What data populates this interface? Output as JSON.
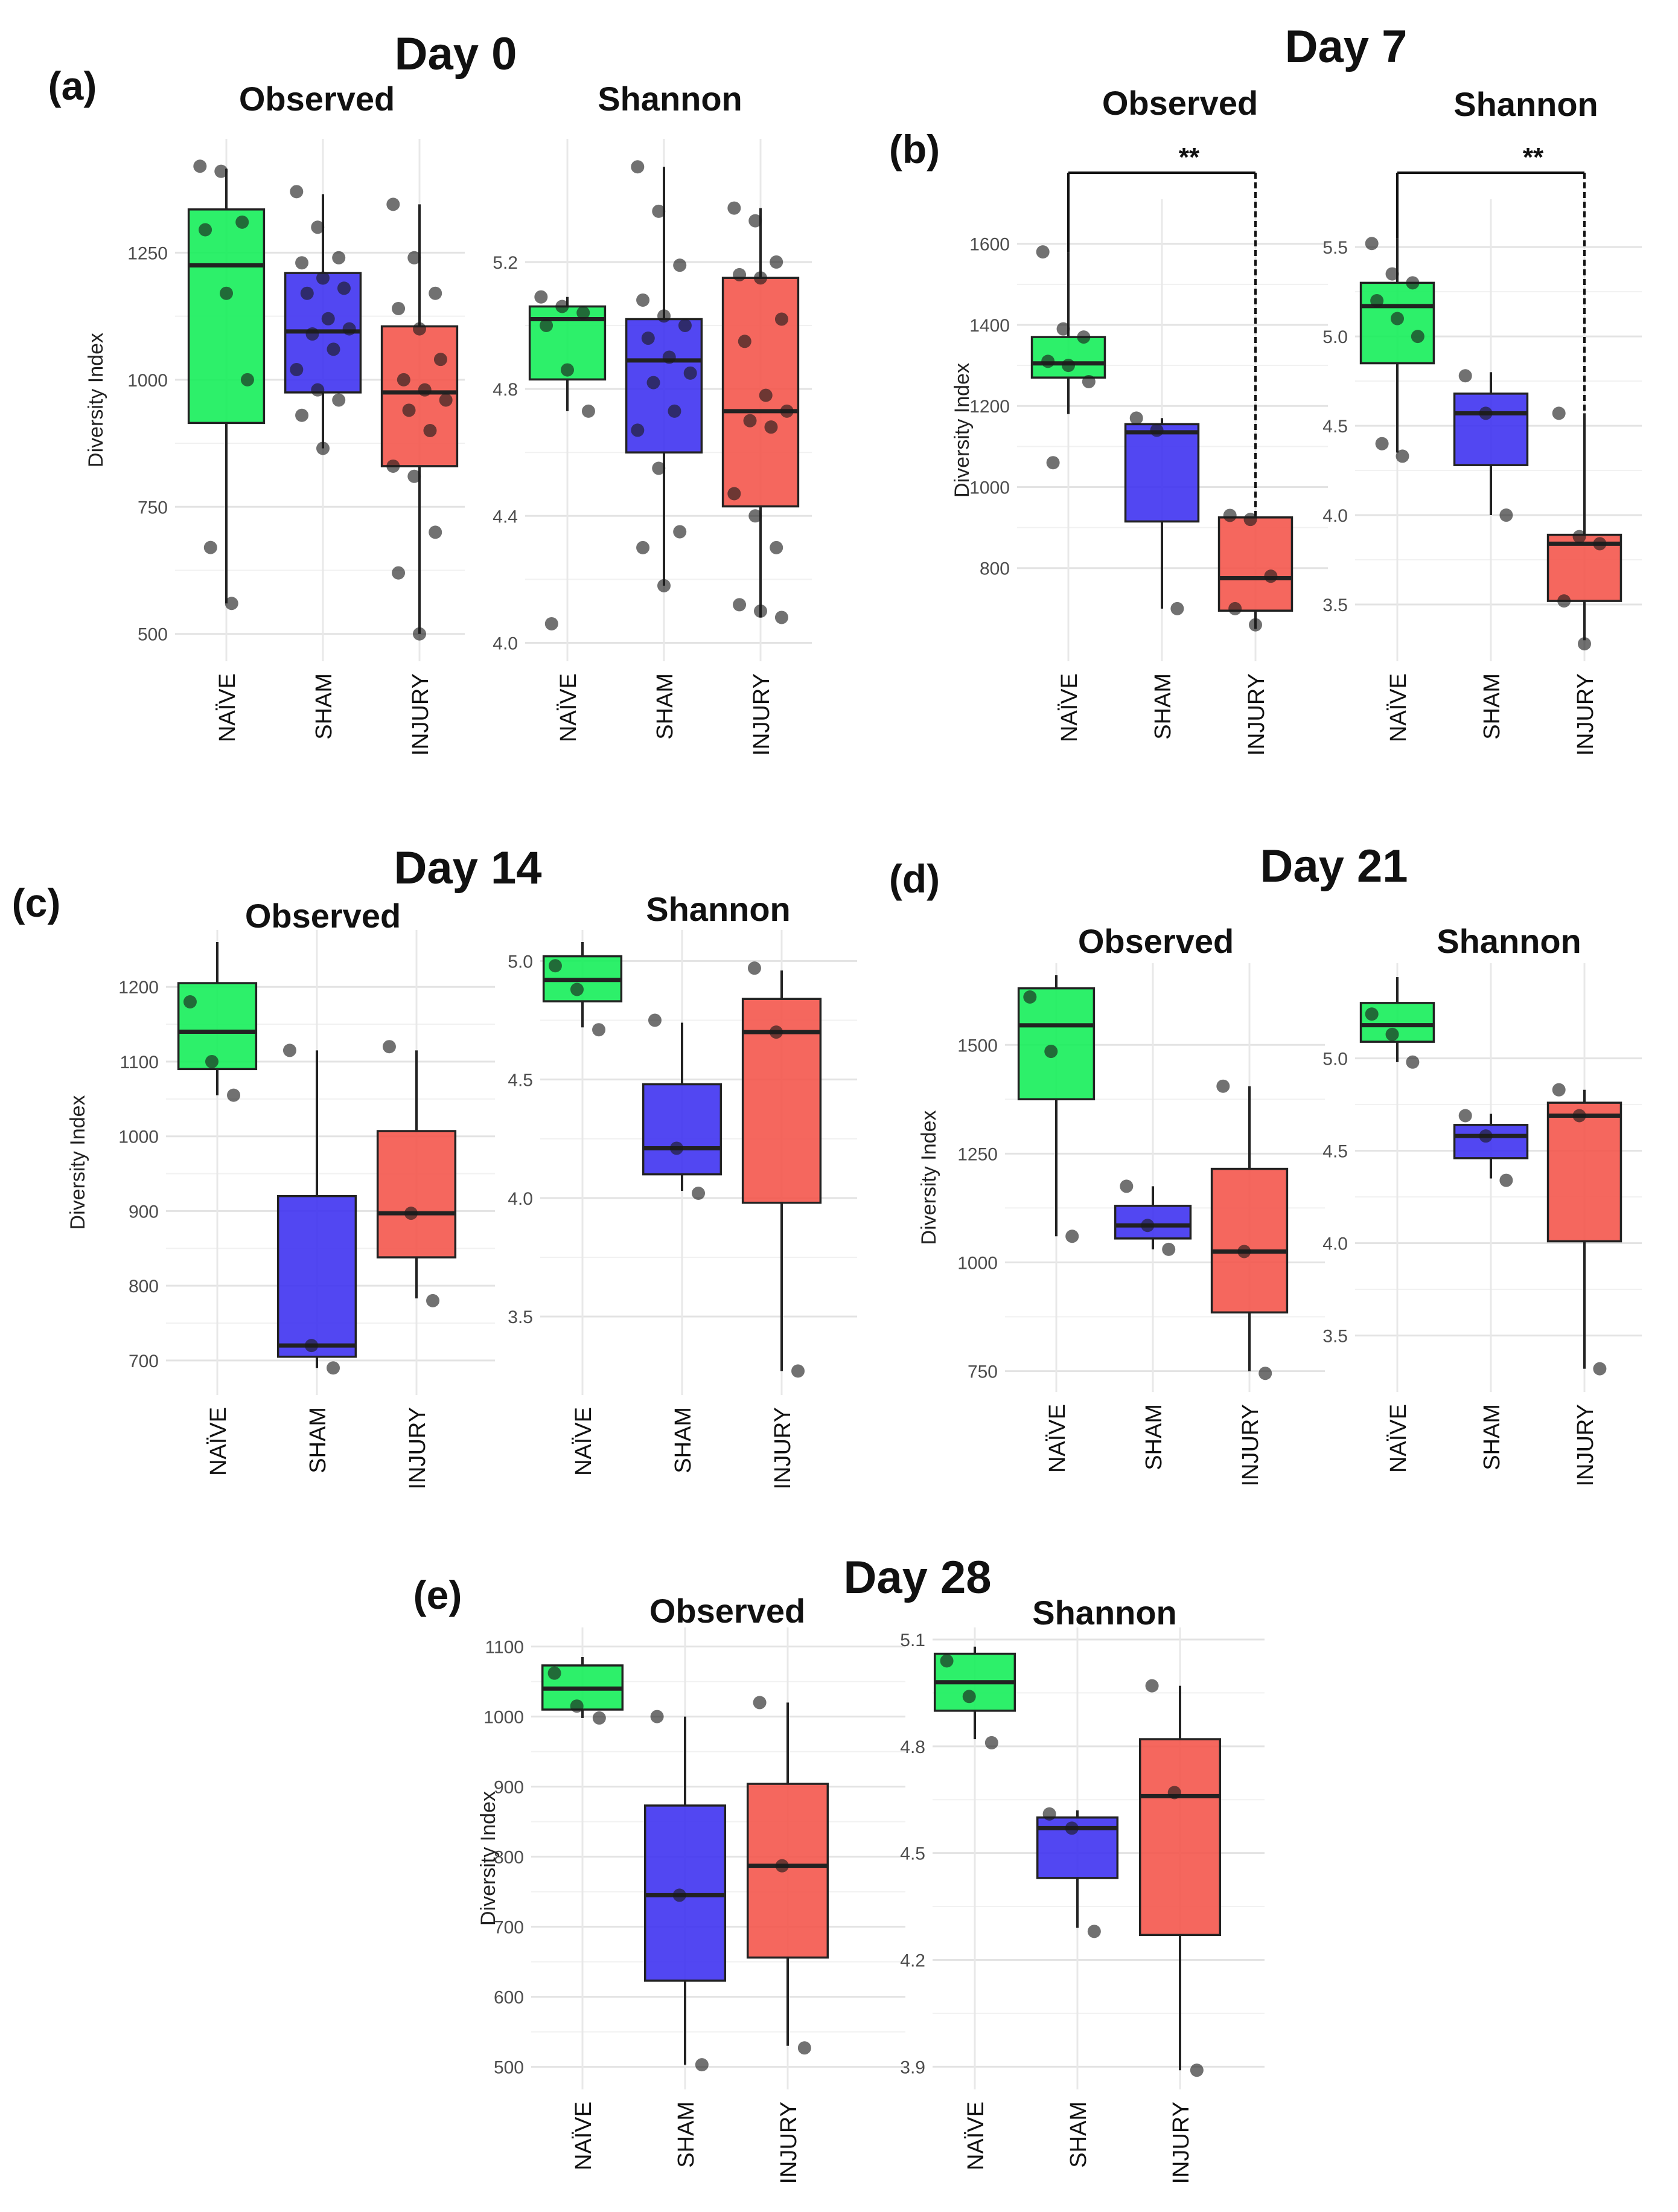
{
  "colors": {
    "NAÏVE": "#10ee55",
    "SHAM": "#3a2ef0",
    "INJURY": "#f45248"
  },
  "chart_data": [
    {
      "id": "a-obs",
      "panel": "(a)",
      "day": "Day 0",
      "title": "Observed",
      "type": "box",
      "ylabel": "Diversity Index",
      "ylim": [
        470,
        1450
      ],
      "yticks": [
        500,
        750,
        1000,
        1250
      ],
      "yticklabels": [
        "500",
        "750",
        "1000",
        "1250"
      ],
      "categories": [
        "NAÏVE",
        "SHAM",
        "INJURY"
      ],
      "boxes": [
        {
          "group": "NAÏVE",
          "q1": 915,
          "median": 1225,
          "q3": 1335,
          "whisk_lo": 560,
          "whisk_hi": 1415,
          "points": [
            1420,
            1410,
            1310,
            1295,
            1170,
            1000,
            670,
            560
          ]
        },
        {
          "group": "SHAM",
          "q1": 975,
          "median": 1095,
          "q3": 1210,
          "whisk_lo": 865,
          "whisk_hi": 1365,
          "points": [
            1370,
            1300,
            1240,
            1230,
            1200,
            1180,
            1170,
            1120,
            1100,
            1090,
            1060,
            1020,
            980,
            960,
            930,
            865
          ]
        },
        {
          "group": "INJURY",
          "q1": 830,
          "median": 975,
          "q3": 1105,
          "whisk_lo": 500,
          "whisk_hi": 1345,
          "points": [
            1345,
            1240,
            1170,
            1140,
            1100,
            1040,
            1000,
            980,
            960,
            940,
            900,
            830,
            810,
            700,
            620,
            500
          ]
        }
      ]
    },
    {
      "id": "a-sha",
      "panel": "",
      "day": "",
      "title": "Shannon",
      "type": "box",
      "ylabel": "",
      "ylim": [
        3.98,
        5.55
      ],
      "yticks": [
        4.0,
        4.4,
        4.8,
        5.2
      ],
      "yticklabels": [
        "4.0",
        "4.4",
        "4.8",
        "5.2"
      ],
      "categories": [
        "NAÏVE",
        "SHAM",
        "INJURY"
      ],
      "boxes": [
        {
          "group": "NAÏVE",
          "q1": 4.83,
          "median": 5.02,
          "q3": 5.06,
          "whisk_lo": 4.73,
          "whisk_hi": 5.09,
          "points": [
            5.09,
            5.06,
            5.04,
            5.0,
            4.86,
            4.73,
            4.06
          ]
        },
        {
          "group": "SHAM",
          "q1": 4.6,
          "median": 4.89,
          "q3": 5.02,
          "whisk_lo": 4.18,
          "whisk_hi": 5.5,
          "points": [
            5.5,
            5.36,
            5.19,
            5.08,
            5.03,
            5.0,
            4.96,
            4.9,
            4.85,
            4.82,
            4.73,
            4.67,
            4.55,
            4.35,
            4.3,
            4.18
          ]
        },
        {
          "group": "INJURY",
          "q1": 4.43,
          "median": 4.73,
          "q3": 5.15,
          "whisk_lo": 4.08,
          "whisk_hi": 5.37,
          "points": [
            5.37,
            5.33,
            5.2,
            5.16,
            5.15,
            5.02,
            4.95,
            4.78,
            4.73,
            4.7,
            4.68,
            4.47,
            4.4,
            4.3,
            4.12,
            4.1,
            4.08
          ]
        }
      ]
    },
    {
      "id": "b-obs",
      "panel": "(b)",
      "day": "Day 7",
      "title": "Observed",
      "type": "box",
      "ylabel": "Diversity Index",
      "ylim": [
        600,
        1680
      ],
      "yticks": [
        800,
        1000,
        1200,
        1400,
        1600
      ],
      "yticklabels": [
        "800",
        "1000",
        "1200",
        "1400",
        "1600"
      ],
      "categories": [
        "NAÏVE",
        "SHAM",
        "INJURY"
      ],
      "significance": {
        "label": "**",
        "from": "NAÏVE",
        "to": "INJURY",
        "level": 1790
      },
      "boxes": [
        {
          "group": "NAÏVE",
          "q1": 1270,
          "median": 1305,
          "q3": 1370,
          "whisk_lo": 1180,
          "whisk_hi": 1580,
          "points": [
            1580,
            1390,
            1370,
            1310,
            1300,
            1260,
            1060
          ]
        },
        {
          "group": "SHAM",
          "q1": 915,
          "median": 1135,
          "q3": 1155,
          "whisk_lo": 700,
          "whisk_hi": 1170,
          "points": [
            1170,
            1140,
            700
          ]
        },
        {
          "group": "INJURY",
          "q1": 695,
          "median": 775,
          "q3": 925,
          "whisk_lo": 650,
          "whisk_hi": 930,
          "points": [
            930,
            920,
            780,
            700,
            660
          ]
        }
      ]
    },
    {
      "id": "b-sha",
      "panel": "",
      "day": "",
      "title": "Shannon",
      "type": "box",
      "ylabel": "",
      "ylim": [
        3.25,
        5.7
      ],
      "yticks": [
        3.5,
        4.0,
        4.5,
        5.0,
        5.5
      ],
      "yticklabels": [
        "3.5",
        "4.0",
        "4.5",
        "5.0",
        "5.5"
      ],
      "categories": [
        "NAÏVE",
        "SHAM",
        "INJURY"
      ],
      "significance": {
        "label": "**",
        "from": "NAÏVE",
        "to": "INJURY",
        "level": 6.05
      },
      "boxes": [
        {
          "group": "NAÏVE",
          "q1": 4.85,
          "median": 5.17,
          "q3": 5.3,
          "whisk_lo": 4.35,
          "whisk_hi": 5.55,
          "points": [
            5.52,
            5.35,
            5.3,
            5.2,
            5.1,
            5.0,
            4.4,
            4.33
          ]
        },
        {
          "group": "SHAM",
          "q1": 4.28,
          "median": 4.57,
          "q3": 4.68,
          "whisk_lo": 4.0,
          "whisk_hi": 4.8,
          "points": [
            4.78,
            4.57,
            4.0
          ]
        },
        {
          "group": "INJURY",
          "q1": 3.52,
          "median": 3.84,
          "q3": 3.89,
          "whisk_lo": 3.3,
          "whisk_hi": 4.57,
          "points": [
            4.57,
            3.88,
            3.84,
            3.52,
            3.28
          ]
        }
      ]
    },
    {
      "id": "c-obs",
      "panel": "(c)",
      "day": "Day 14",
      "title": "Observed",
      "type": "box",
      "ylabel": "Diversity Index",
      "ylim": [
        670,
        1260
      ],
      "yticks": [
        700,
        800,
        900,
        1000,
        1100,
        1200
      ],
      "yticklabels": [
        "700",
        "800",
        "900",
        "1000",
        "1100",
        "1200"
      ],
      "categories": [
        "NAÏVE",
        "SHAM",
        "INJURY"
      ],
      "boxes": [
        {
          "group": "NAÏVE",
          "q1": 1090,
          "median": 1140,
          "q3": 1205,
          "whisk_lo": 1055,
          "whisk_hi": 1260,
          "points": [
            1180,
            1100,
            1055
          ]
        },
        {
          "group": "SHAM",
          "q1": 705,
          "median": 720,
          "q3": 920,
          "whisk_lo": 690,
          "whisk_hi": 1115,
          "points": [
            1115,
            720,
            690
          ]
        },
        {
          "group": "INJURY",
          "q1": 838,
          "median": 897,
          "q3": 1007,
          "whisk_lo": 783,
          "whisk_hi": 1115,
          "points": [
            1120,
            897,
            780
          ]
        }
      ]
    },
    {
      "id": "c-sha",
      "panel": "",
      "day": "",
      "title": "Shannon",
      "type": "box",
      "ylabel": "",
      "ylim": [
        3.22,
        5.08
      ],
      "yticks": [
        3.5,
        4.0,
        4.5,
        5.0
      ],
      "yticklabels": [
        "3.5",
        "4.0",
        "4.5",
        "5.0"
      ],
      "categories": [
        "NAÏVE",
        "SHAM",
        "INJURY"
      ],
      "boxes": [
        {
          "group": "NAÏVE",
          "q1": 4.83,
          "median": 4.92,
          "q3": 5.02,
          "whisk_lo": 4.72,
          "whisk_hi": 5.08,
          "points": [
            4.98,
            4.88,
            4.71
          ]
        },
        {
          "group": "SHAM",
          "q1": 4.1,
          "median": 4.21,
          "q3": 4.48,
          "whisk_lo": 4.03,
          "whisk_hi": 4.74,
          "points": [
            4.75,
            4.21,
            4.02
          ]
        },
        {
          "group": "INJURY",
          "q1": 3.98,
          "median": 4.7,
          "q3": 4.84,
          "whisk_lo": 3.27,
          "whisk_hi": 4.96,
          "points": [
            4.97,
            4.7,
            3.27
          ]
        }
      ]
    },
    {
      "id": "d-obs",
      "panel": "(d)",
      "day": "Day 21",
      "title": "Observed",
      "type": "box",
      "ylabel": "Diversity Index",
      "ylim": [
        730,
        1660
      ],
      "yticks": [
        750,
        1000,
        1250,
        1500
      ],
      "yticklabels": [
        "750",
        "1000",
        "1250",
        "1500"
      ],
      "categories": [
        "NAÏVE",
        "SHAM",
        "INJURY"
      ],
      "boxes": [
        {
          "group": "NAÏVE",
          "q1": 1375,
          "median": 1545,
          "q3": 1630,
          "whisk_lo": 1060,
          "whisk_hi": 1660,
          "points": [
            1610,
            1485,
            1060
          ]
        },
        {
          "group": "SHAM",
          "q1": 1055,
          "median": 1085,
          "q3": 1130,
          "whisk_lo": 1030,
          "whisk_hi": 1175,
          "points": [
            1175,
            1085,
            1030
          ]
        },
        {
          "group": "INJURY",
          "q1": 885,
          "median": 1025,
          "q3": 1215,
          "whisk_lo": 750,
          "whisk_hi": 1405,
          "points": [
            1405,
            1025,
            745
          ]
        }
      ]
    },
    {
      "id": "d-sha",
      "panel": "",
      "day": "",
      "title": "Shannon",
      "type": "box",
      "ylabel": "",
      "ylim": [
        3.26,
        5.45
      ],
      "yticks": [
        3.5,
        4.0,
        4.5,
        5.0
      ],
      "yticklabels": [
        "3.5",
        "4.0",
        "4.5",
        "5.0"
      ],
      "categories": [
        "NAÏVE",
        "SHAM",
        "INJURY"
      ],
      "boxes": [
        {
          "group": "NAÏVE",
          "q1": 5.09,
          "median": 5.18,
          "q3": 5.3,
          "whisk_lo": 4.98,
          "whisk_hi": 5.44,
          "points": [
            5.24,
            5.13,
            4.98
          ]
        },
        {
          "group": "SHAM",
          "q1": 4.46,
          "median": 4.58,
          "q3": 4.64,
          "whisk_lo": 4.35,
          "whisk_hi": 4.7,
          "points": [
            4.69,
            4.58,
            4.34
          ]
        },
        {
          "group": "INJURY",
          "q1": 4.01,
          "median": 4.69,
          "q3": 4.76,
          "whisk_lo": 3.32,
          "whisk_hi": 4.83,
          "points": [
            4.83,
            4.69,
            3.32
          ]
        }
      ]
    },
    {
      "id": "e-obs",
      "panel": "(e)",
      "day": "Day 28",
      "title": "Observed",
      "type": "box",
      "ylabel": "Diversity Index",
      "ylim": [
        485,
        1110
      ],
      "yticks": [
        500,
        600,
        700,
        800,
        900,
        1000,
        1100
      ],
      "yticklabels": [
        "500",
        "600",
        "700",
        "800",
        "900",
        "1000",
        "1100"
      ],
      "categories": [
        "NAÏVE",
        "SHAM",
        "INJURY"
      ],
      "boxes": [
        {
          "group": "NAÏVE",
          "q1": 1010,
          "median": 1040,
          "q3": 1073,
          "whisk_lo": 998,
          "whisk_hi": 1085,
          "points": [
            1062,
            1015,
            998
          ]
        },
        {
          "group": "SHAM",
          "q1": 623,
          "median": 745,
          "q3": 873,
          "whisk_lo": 503,
          "whisk_hi": 1000,
          "points": [
            1000,
            745,
            503
          ]
        },
        {
          "group": "INJURY",
          "q1": 656,
          "median": 787,
          "q3": 904,
          "whisk_lo": 530,
          "whisk_hi": 1020,
          "points": [
            1020,
            787,
            527
          ]
        }
      ]
    },
    {
      "id": "e-sha",
      "panel": "",
      "day": "",
      "title": "Shannon",
      "type": "box",
      "ylabel": "",
      "ylim": [
        3.87,
        5.1
      ],
      "yticks": [
        3.9,
        4.2,
        4.5,
        4.8,
        5.1
      ],
      "yticklabels": [
        "3.9",
        "4.2",
        "4.5",
        "4.8",
        "5.1"
      ],
      "categories": [
        "NAÏVE",
        "SHAM",
        "INJURY"
      ],
      "boxes": [
        {
          "group": "NAÏVE",
          "q1": 4.9,
          "median": 4.98,
          "q3": 5.06,
          "whisk_lo": 4.82,
          "whisk_hi": 5.08,
          "points": [
            5.04,
            4.94,
            4.81
          ]
        },
        {
          "group": "SHAM",
          "q1": 4.43,
          "median": 4.57,
          "q3": 4.6,
          "whisk_lo": 4.29,
          "whisk_hi": 4.62,
          "points": [
            4.61,
            4.57,
            4.28
          ]
        },
        {
          "group": "INJURY",
          "q1": 4.27,
          "median": 4.66,
          "q3": 4.82,
          "whisk_lo": 3.89,
          "whisk_hi": 4.97,
          "points": [
            4.97,
            4.67,
            3.89
          ]
        }
      ]
    }
  ]
}
